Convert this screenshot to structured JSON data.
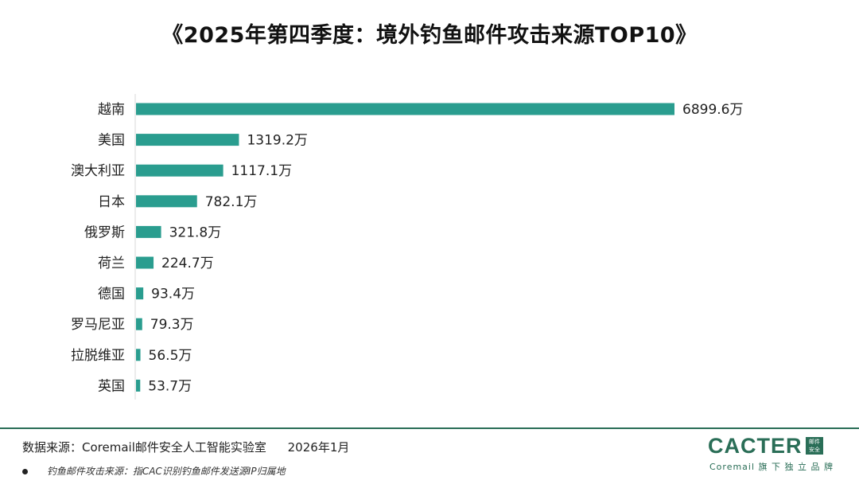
{
  "chart_data": {
    "type": "bar",
    "orientation": "horizontal",
    "title": "《2025年第四季度：境外钓鱼邮件攻击来源TOP10》",
    "categories": [
      "越南",
      "美国",
      "澳大利亚",
      "日本",
      "俄罗斯",
      "荷兰",
      "德国",
      "罗马尼亚",
      "拉脱维亚",
      "英国"
    ],
    "values": [
      6899.6,
      1319.2,
      1117.1,
      782.1,
      321.8,
      224.7,
      93.4,
      79.3,
      56.5,
      53.7
    ],
    "value_labels": [
      "6899.6万",
      "1319.2万",
      "1117.1万",
      "782.1万",
      "321.8万",
      "224.7万",
      "93.4万",
      "79.3万",
      "56.5万",
      "53.7万"
    ],
    "unit": "万",
    "xlim": [
      0,
      6899.6
    ],
    "bar_color": "#2a9d8f",
    "grid": false
  },
  "footer": {
    "source": "数据来源：Coremail邮件安全人工智能实验室",
    "date": "2026年1月",
    "note": "钓鱼邮件攻击来源：指CAC识别钓鱼邮件发送源IP归属地"
  },
  "brand": {
    "name": "CACTER",
    "badge_line1": "邮件",
    "badge_line2": "安全",
    "tagline": "Coremail 旗 下 独 立 品 牌",
    "color": "#2a6e57"
  }
}
